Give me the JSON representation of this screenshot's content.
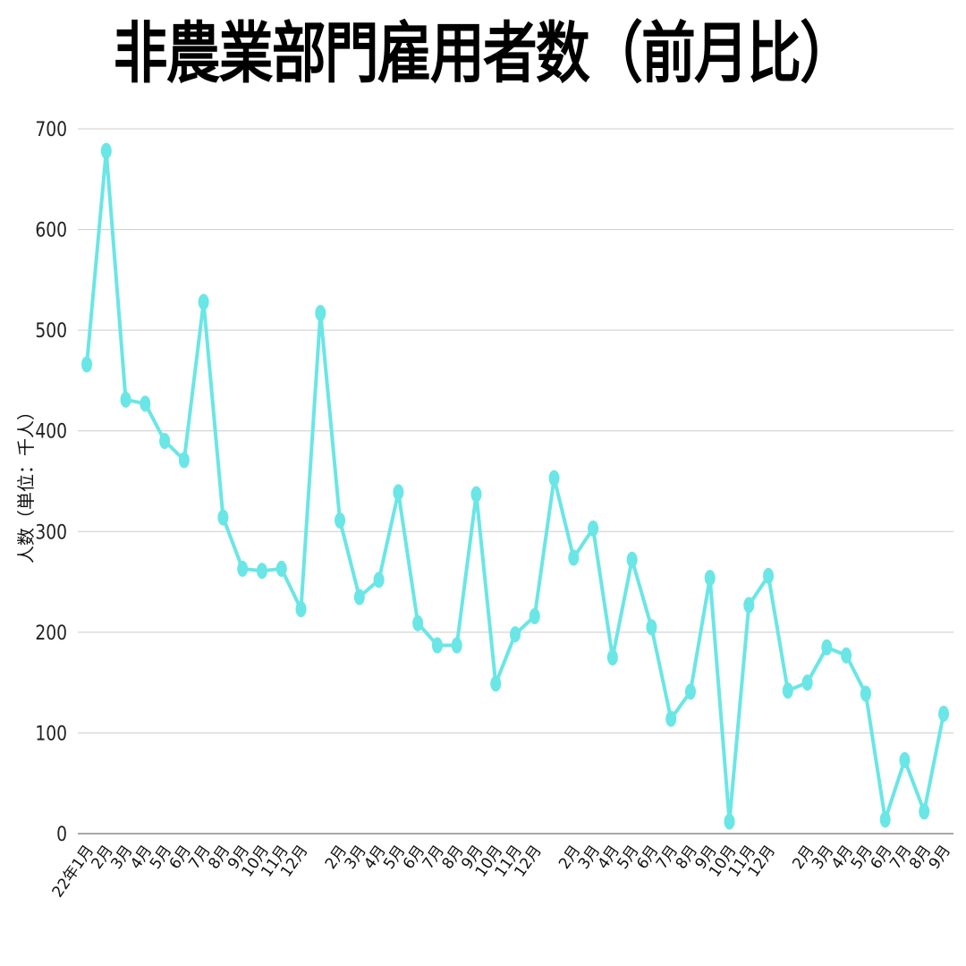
{
  "chart_data": {
    "type": "line",
    "title": "非農業部門雇用者数（前月比）",
    "xlabel": "",
    "ylabel": "人数（単位：千人）",
    "ylim": [
      0,
      700
    ],
    "yticks": [
      0,
      100,
      200,
      300,
      400,
      500,
      600,
      700
    ],
    "grid": true,
    "legend": null,
    "line_color": "#6ae6e6",
    "categories": [
      "22年1月",
      "2月",
      "3月",
      "4月",
      "5月",
      "6月",
      "7月",
      "8月",
      "9月",
      "10月",
      "11月",
      "12月",
      "",
      "2月",
      "3月",
      "4月",
      "5月",
      "6月",
      "7月",
      "8月",
      "9月",
      "10月",
      "11月",
      "12月",
      "",
      "2月",
      "3月",
      "4月",
      "5月",
      "6月",
      "7月",
      "8月",
      "9月",
      "10月",
      "11月",
      "12月",
      "",
      "2月",
      "3月",
      "4月",
      "5月",
      "6月",
      "7月",
      "8月",
      "9月"
    ],
    "series": [
      {
        "name": "非農業部門雇用者数（前月比）",
        "values": [
          466,
          678,
          431,
          427,
          390,
          371,
          528,
          314,
          263,
          261,
          263,
          223,
          517,
          311,
          235,
          252,
          339,
          209,
          187,
          187,
          337,
          149,
          198,
          216,
          353,
          274,
          303,
          175,
          272,
          205,
          114,
          141,
          254,
          12,
          227,
          256,
          142,
          150,
          185,
          177,
          139,
          14,
          73,
          22,
          119
        ]
      }
    ]
  }
}
